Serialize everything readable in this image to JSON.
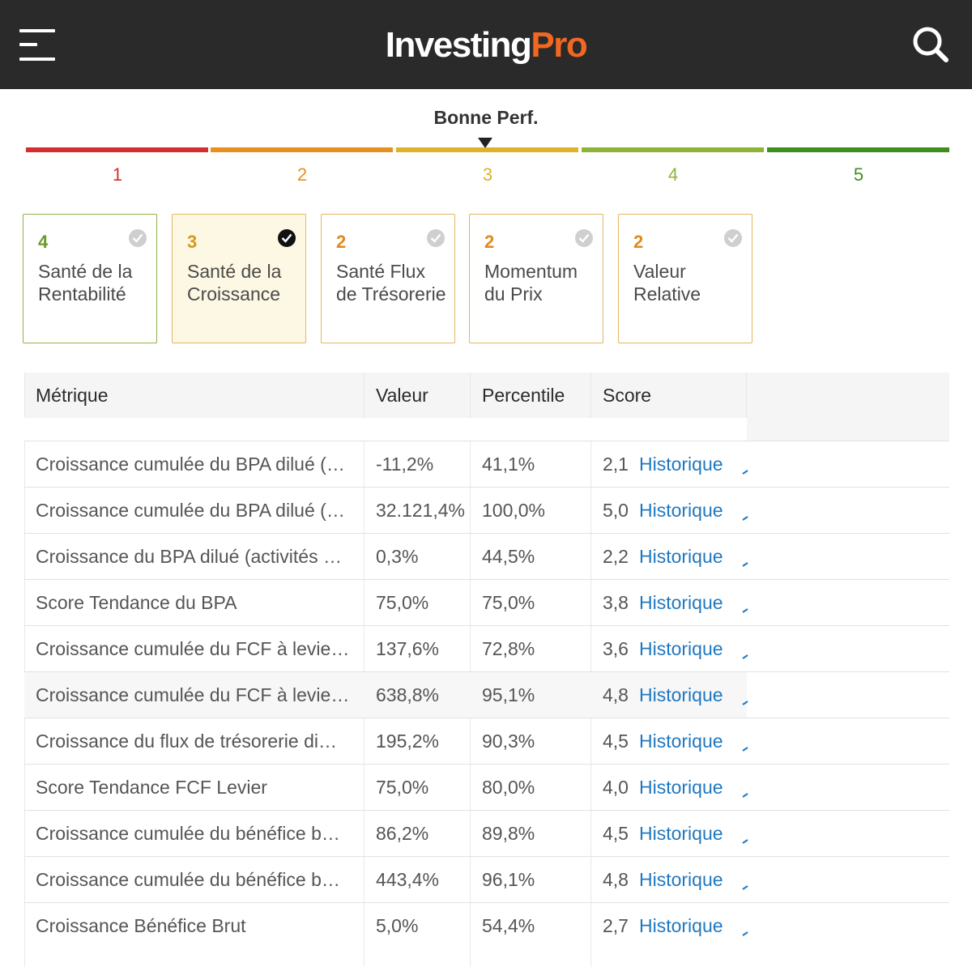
{
  "header": {
    "logo_part1": "Investing",
    "logo_part2": "Pro",
    "menu_icon": "hamburger-icon",
    "search_icon": "search-icon"
  },
  "rating": {
    "title": "Bonne Perf.",
    "current": 3,
    "levels": [
      {
        "label": "1",
        "color": "#d32f2f"
      },
      {
        "label": "2",
        "color": "#e8901f"
      },
      {
        "label": "3",
        "color": "#ddb32a"
      },
      {
        "label": "4",
        "color": "#8fb339"
      },
      {
        "label": "5",
        "color": "#3f8f1f"
      }
    ]
  },
  "cards": [
    {
      "score": "4",
      "label": "Santé de la Rentabilité",
      "score_color": "#6a9b2a",
      "active": false
    },
    {
      "score": "3",
      "label": "Santé de la Croissance",
      "score_color": "#d49a1c",
      "active": true
    },
    {
      "score": "2",
      "label": "Santé Flux de Trésorerie",
      "score_color": "#e08a1e",
      "active": false
    },
    {
      "score": "2",
      "label": "Momentum du Prix",
      "score_color": "#e08a1e",
      "active": false
    },
    {
      "score": "2",
      "label": "Valeur Relative",
      "score_color": "#e08a1e",
      "active": false
    }
  ],
  "table": {
    "headers": {
      "metric": "Métrique",
      "value": "Valeur",
      "percentile": "Percentile",
      "score": "Score"
    },
    "link_label": "Historique",
    "link_color": "#1f78c1",
    "rows": [
      {
        "metric": "Croissance cumulée du BPA dilué (…",
        "value": "-11,2%",
        "percentile": "41,1%",
        "score": "2,1"
      },
      {
        "metric": "Croissance cumulée du BPA dilué (…",
        "value": "32.121,4%",
        "percentile": "100,0%",
        "score": "5,0"
      },
      {
        "metric": "Croissance du BPA dilué (activités …",
        "value": "0,3%",
        "percentile": "44,5%",
        "score": "2,2"
      },
      {
        "metric": "Score Tendance du BPA",
        "value": "75,0%",
        "percentile": "75,0%",
        "score": "3,8"
      },
      {
        "metric": "Croissance cumulée du FCF à levie…",
        "value": "137,6%",
        "percentile": "72,8%",
        "score": "3,6"
      },
      {
        "metric": "Croissance cumulée du FCF à levie…",
        "value": "638,8%",
        "percentile": "95,1%",
        "score": "4,8"
      },
      {
        "metric": "Croissance du flux de trésorerie di…",
        "value": "195,2%",
        "percentile": "90,3%",
        "score": "4,5"
      },
      {
        "metric": "Score Tendance FCF Levier",
        "value": "75,0%",
        "percentile": "80,0%",
        "score": "4,0"
      },
      {
        "metric": "Croissance cumulée du bénéfice b…",
        "value": "86,2%",
        "percentile": "89,8%",
        "score": "4,5"
      },
      {
        "metric": "Croissance cumulée du bénéfice b…",
        "value": "443,4%",
        "percentile": "96,1%",
        "score": "4,8"
      },
      {
        "metric": "Croissance Bénéfice Brut",
        "value": "5,0%",
        "percentile": "54,4%",
        "score": "2,7"
      }
    ]
  }
}
